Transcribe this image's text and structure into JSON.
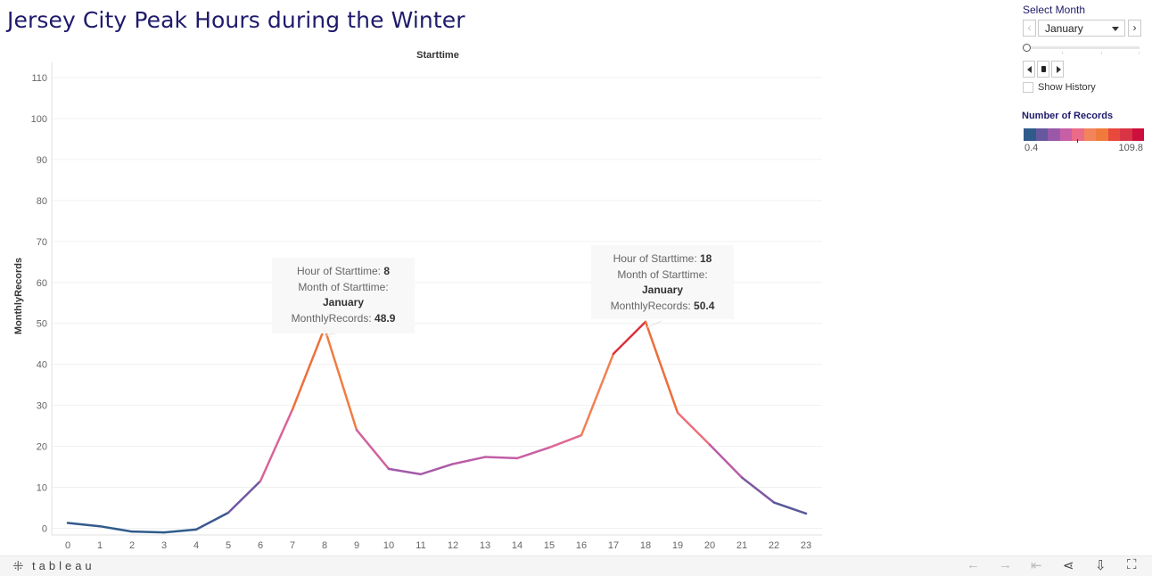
{
  "title": "Jersey City Peak Hours during the Winter",
  "controls": {
    "select_label": "Select Month",
    "selected_month": "January",
    "prev_glyph": "‹",
    "next_glyph": "›",
    "show_history_label": "Show History",
    "show_history_checked": false
  },
  "legend": {
    "title": "Number of Records",
    "min": "0.4",
    "max": "109.8",
    "colors": [
      "#2e5b8a",
      "#66589f",
      "#9a59a8",
      "#c65fa6",
      "#ea6a87",
      "#f2845c",
      "#ef7a3c",
      "#e8493d",
      "#d93446",
      "#cc0f3c"
    ]
  },
  "tooltips": [
    {
      "hour_label": "Hour of Starttime:",
      "hour_value": "8",
      "month_label": "Month of Starttime:",
      "month_value": "January",
      "records_label": "MonthlyRecords:",
      "records_value": "48.9"
    },
    {
      "hour_label": "Hour of Starttime:",
      "hour_value": "18",
      "month_label": "Month of Starttime:",
      "month_value": "January",
      "records_label": "MonthlyRecords:",
      "records_value": "50.4"
    }
  ],
  "toolbar": {
    "brand": "tableau",
    "icons": [
      "undo-icon",
      "redo-icon",
      "revert-icon",
      "share-icon",
      "download-icon",
      "fullscreen-icon"
    ]
  },
  "chart_data": {
    "type": "line",
    "title": "",
    "xlabel": "Starttime",
    "ylabel": "MonthlyRecords",
    "x": [
      0,
      1,
      2,
      3,
      4,
      5,
      6,
      7,
      8,
      9,
      10,
      11,
      12,
      13,
      14,
      15,
      16,
      17,
      18,
      19,
      20,
      21,
      22,
      23
    ],
    "series": [
      {
        "values": [
          1.3,
          0.5,
          -0.8,
          -1.0,
          -0.3,
          3.8,
          11.5,
          29.0,
          48.9,
          24.0,
          14.5,
          13.2,
          15.7,
          17.4,
          17.1,
          19.7,
          22.7,
          42.6,
          50.4,
          28.2,
          20.4,
          12.4,
          6.3,
          3.6
        ]
      }
    ],
    "ylim": [
      -1.5,
      113
    ],
    "yticks": [
      0,
      10,
      20,
      30,
      40,
      50,
      60,
      70,
      80,
      90,
      100,
      110
    ],
    "grid": true,
    "color_scale": {
      "min": 0.4,
      "max": 109.8
    }
  }
}
